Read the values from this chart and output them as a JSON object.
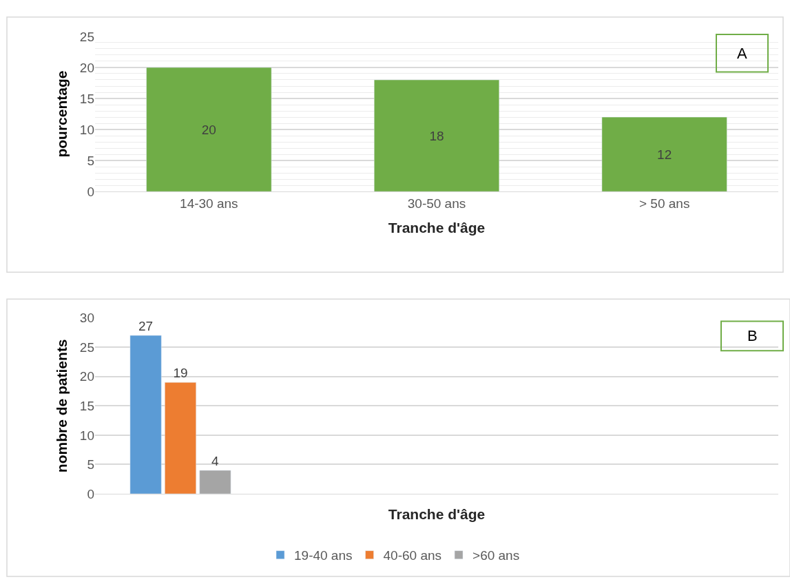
{
  "chart_data": [
    {
      "type": "bar",
      "xlabel": "Tranche d'âge",
      "ylabel": "pourcentage",
      "categories": [
        "14-30 ans",
        "30-50 ans",
        "> 50 ans"
      ],
      "values": [
        20,
        18,
        12
      ],
      "color": "#70ad47",
      "data_labels": true,
      "ylim": [
        0,
        25
      ],
      "yticks": [
        0,
        5,
        10,
        15,
        20,
        25
      ],
      "grid": "y",
      "legend": false,
      "annotations": [
        "A"
      ]
    },
    {
      "type": "bar",
      "xlabel": "Tranche d'âge",
      "ylabel": "nombre de patients",
      "categories": [
        null
      ],
      "series": [
        {
          "name": "19-40 ans",
          "color": "#5b9bd5",
          "values": [
            27
          ],
          "value_labels": [
            "27"
          ]
        },
        {
          "name": "40-60 ans",
          "color": "#ed7d31",
          "values": [
            19
          ],
          "value_labels": [
            "19"
          ]
        },
        {
          "name": ">60 ans",
          "color": "#a5a5a5",
          "values": [
            4
          ],
          "value_labels": [
            "4"
          ]
        }
      ],
      "ylim": [
        0,
        30
      ],
      "yticks": [
        0,
        5,
        10,
        15,
        20,
        25,
        30
      ],
      "grid": "y",
      "legend": "bottom",
      "annotations": [
        "B"
      ]
    }
  ]
}
